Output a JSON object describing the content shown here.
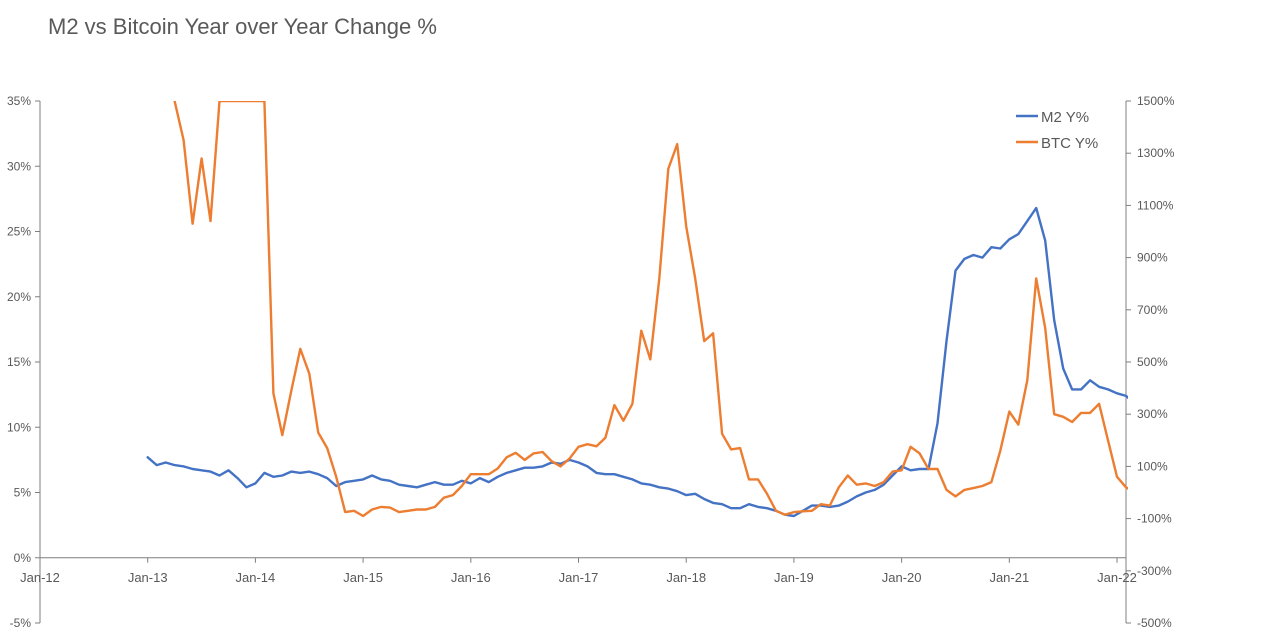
{
  "chart_data": {
    "type": "line",
    "title": "M2 vs Bitcoin Year over Year Change %",
    "x_ticks": [
      "Jan-12",
      "Jan-13",
      "Jan-14",
      "Jan-15",
      "Jan-16",
      "Jan-17",
      "Jan-18",
      "Jan-19",
      "Jan-20",
      "Jan-21",
      "Jan-22"
    ],
    "xlim": [
      "2012-01",
      "2022-02"
    ],
    "y_left": {
      "ticks": [
        "-5%",
        "0%",
        "5%",
        "10%",
        "15%",
        "20%",
        "25%",
        "30%",
        "35%"
      ],
      "lim": [
        -5,
        35
      ],
      "unit": "%"
    },
    "y_right": {
      "ticks": [
        "-500%",
        "-300%",
        "-100%",
        "100%",
        "300%",
        "500%",
        "700%",
        "900%",
        "1100%",
        "1300%",
        "1500%"
      ],
      "lim": [
        -500,
        1500
      ],
      "unit": "%"
    },
    "legend_position": "top-right",
    "grid": false,
    "series": [
      {
        "name": "M2 Y%",
        "axis": "left",
        "color": "#4472C4",
        "start": "2013-01",
        "values": [
          7.7,
          7.1,
          7.3,
          7.1,
          7.0,
          6.8,
          6.7,
          6.6,
          6.3,
          6.7,
          6.1,
          5.4,
          5.7,
          6.5,
          6.2,
          6.3,
          6.6,
          6.5,
          6.6,
          6.4,
          6.1,
          5.5,
          5.8,
          5.9,
          6.0,
          6.3,
          6.0,
          5.9,
          5.6,
          5.5,
          5.4,
          5.6,
          5.8,
          5.6,
          5.6,
          5.9,
          5.7,
          6.1,
          5.8,
          6.2,
          6.5,
          6.7,
          6.9,
          6.9,
          7.0,
          7.3,
          7.2,
          7.5,
          7.3,
          7.0,
          6.5,
          6.4,
          6.4,
          6.2,
          6.0,
          5.7,
          5.6,
          5.4,
          5.3,
          5.1,
          4.8,
          4.9,
          4.5,
          4.2,
          4.1,
          3.8,
          3.8,
          4.1,
          3.9,
          3.8,
          3.6,
          3.3,
          3.2,
          3.6,
          4.0,
          4.0,
          3.9,
          4.0,
          4.3,
          4.7,
          5.0,
          5.2,
          5.6,
          6.3,
          7.0,
          6.7,
          6.8,
          6.8,
          10.3,
          16.6,
          22.0,
          22.9,
          23.2,
          23.0,
          23.8,
          23.7,
          24.4,
          24.8,
          25.8,
          26.8,
          24.3,
          18.2,
          14.5,
          12.9,
          12.9,
          13.6,
          13.1,
          12.9,
          12.6,
          12.4,
          11.8,
          10.8,
          9.8
        ]
      },
      {
        "name": "BTC Y%",
        "axis": "right",
        "color": "#ED7D31",
        "start": "2013-04",
        "values": [
          1500,
          1350,
          1030,
          1280,
          1040,
          1500,
          1500,
          1500,
          1500,
          1500,
          1500,
          380,
          220,
          390,
          550,
          455,
          230,
          170,
          60,
          -75,
          -70,
          -90,
          -65,
          -55,
          -58,
          -75,
          -70,
          -65,
          -65,
          -55,
          -20,
          -10,
          25,
          70,
          70,
          70,
          92,
          135,
          152,
          125,
          150,
          155,
          120,
          100,
          130,
          175,
          185,
          177,
          210,
          335,
          275,
          340,
          620,
          510,
          820,
          1240,
          1335,
          1020,
          820,
          580,
          610,
          225,
          165,
          170,
          50,
          50,
          -5,
          -70,
          -85,
          -75,
          -72,
          -70,
          -45,
          -50,
          20,
          65,
          30,
          35,
          25,
          40,
          80,
          85,
          175,
          150,
          90,
          90,
          10,
          -15,
          10,
          17,
          25,
          40,
          160,
          310,
          260,
          430,
          820,
          630,
          300,
          290,
          270,
          305,
          305,
          340,
          200,
          60,
          20,
          0,
          -15,
          -25,
          10
        ]
      }
    ]
  }
}
